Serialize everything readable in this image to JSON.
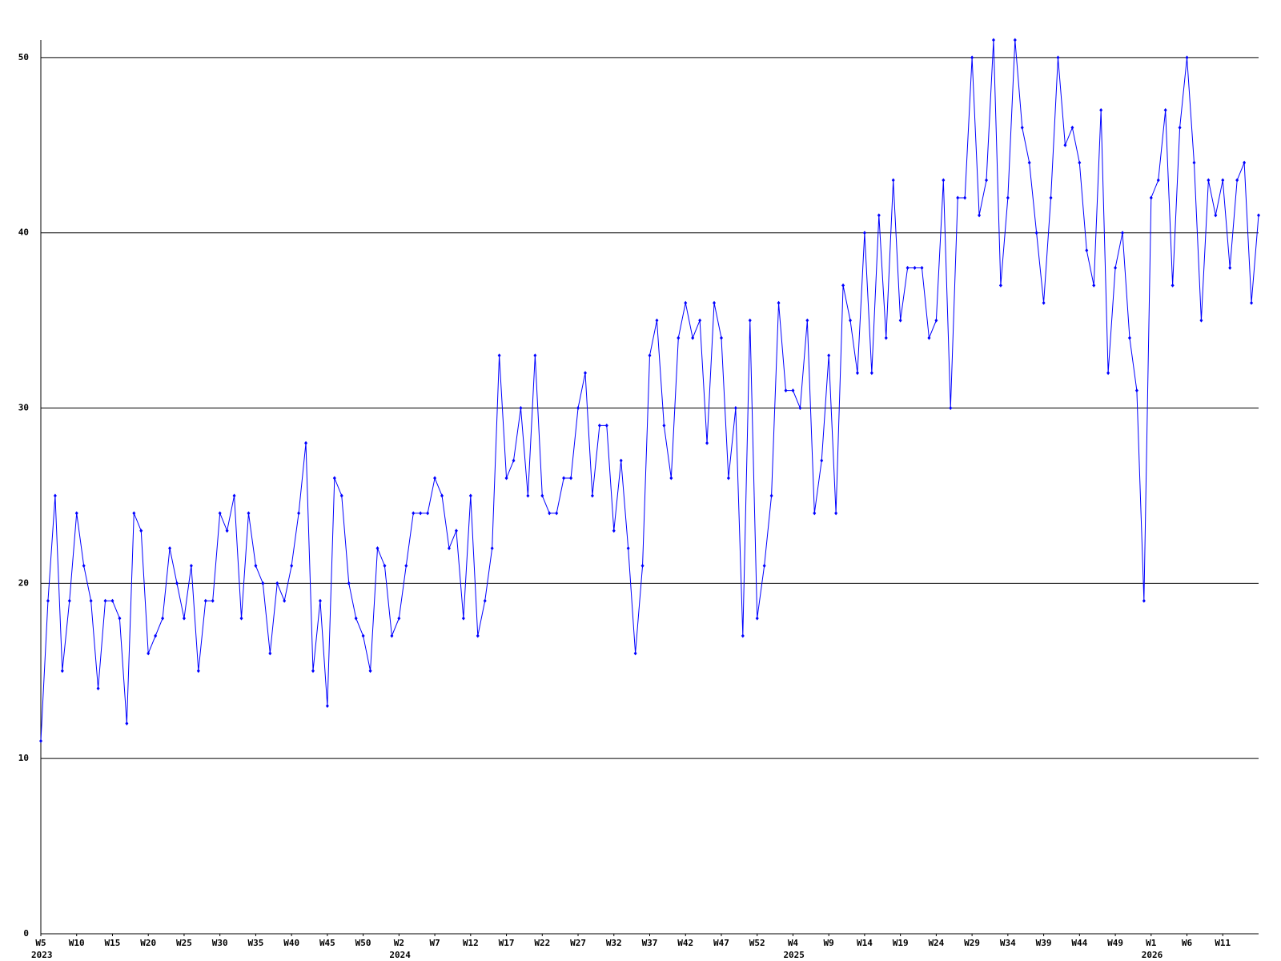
{
  "chart_data": {
    "type": "line",
    "x": [
      0,
      1,
      2,
      3,
      4,
      5,
      6,
      7,
      8,
      9,
      10,
      11,
      12,
      13,
      14,
      15,
      16,
      17,
      18,
      19,
      20,
      21,
      22,
      23,
      24,
      25,
      26,
      27,
      28,
      29,
      30,
      31,
      32,
      33,
      34,
      35,
      36,
      37,
      38,
      39,
      40,
      41,
      42,
      43,
      44,
      45,
      46,
      47,
      48,
      49,
      50,
      51,
      52,
      53,
      54,
      55,
      56,
      57,
      58,
      59,
      60,
      61,
      62,
      63,
      64,
      65,
      66,
      67,
      68,
      69,
      70,
      71,
      72,
      73,
      74,
      75,
      76,
      77,
      78,
      79,
      80,
      81,
      82,
      83,
      84,
      85,
      86,
      87,
      88,
      89,
      90,
      91,
      92,
      93,
      94,
      95,
      96,
      97,
      98,
      99,
      100,
      101,
      102,
      103,
      104,
      105,
      106,
      107,
      108,
      109,
      110,
      111,
      112,
      113,
      114,
      115,
      116,
      117,
      118,
      119,
      120,
      121,
      122,
      123,
      124,
      125,
      126,
      127,
      128,
      129,
      130,
      131,
      132,
      133,
      134,
      135,
      136,
      137,
      138,
      139,
      140,
      141,
      142,
      143,
      144,
      145,
      146,
      147,
      148,
      149,
      150,
      151,
      152,
      153,
      154,
      155,
      156,
      157,
      158,
      159,
      160,
      161,
      162,
      163,
      164,
      165,
      166,
      167,
      168,
      169,
      170
    ],
    "series": [
      {
        "color": "#0000ff",
        "values": [
          11,
          19,
          25,
          15,
          19,
          24,
          21,
          19,
          14,
          19,
          19,
          18,
          12,
          24,
          23,
          16,
          17,
          18,
          22,
          20,
          18,
          21,
          15,
          19,
          19,
          24,
          23,
          25,
          18,
          24,
          21,
          20,
          16,
          20,
          19,
          21,
          24,
          28,
          15,
          19,
          13,
          26,
          25,
          20,
          18,
          17,
          15,
          22,
          21,
          17,
          18,
          21,
          24,
          24,
          24,
          26,
          25,
          22,
          23,
          18,
          25,
          17,
          19,
          22,
          33,
          26,
          27,
          30,
          25,
          33,
          25,
          24,
          24,
          26,
          26,
          30,
          32,
          25,
          29,
          29,
          23,
          27,
          22,
          16,
          21,
          33,
          35,
          29,
          26,
          34,
          36,
          34,
          35,
          28,
          36,
          34,
          26,
          30,
          17,
          35,
          18,
          21,
          25,
          36,
          31,
          31,
          30,
          35,
          24,
          27,
          33,
          24,
          37,
          35,
          32,
          40,
          32,
          41,
          34,
          43,
          35,
          38,
          38,
          38,
          34,
          35,
          43,
          30,
          42,
          42,
          50,
          41,
          43,
          51,
          37,
          42,
          51,
          46,
          44,
          40,
          36,
          42,
          50,
          45,
          46,
          44,
          39,
          37,
          47,
          32,
          38,
          40,
          34,
          31,
          19,
          42,
          43,
          47,
          37,
          46,
          50,
          44,
          35,
          43,
          41,
          43,
          38,
          43,
          44,
          36,
          41
        ]
      }
    ],
    "xlim": [
      0,
      170
    ],
    "xticks": [
      {
        "value": 0,
        "label": "W5"
      },
      {
        "value": 5,
        "label": "W10"
      },
      {
        "value": 10,
        "label": "W15"
      },
      {
        "value": 15,
        "label": "W20"
      },
      {
        "value": 20,
        "label": "W25"
      },
      {
        "value": 25,
        "label": "W30"
      },
      {
        "value": 30,
        "label": "W35"
      },
      {
        "value": 35,
        "label": "W40"
      },
      {
        "value": 40,
        "label": "W45"
      },
      {
        "value": 45,
        "label": "W50"
      },
      {
        "value": 50,
        "label": "W2"
      },
      {
        "value": 55,
        "label": "W7"
      },
      {
        "value": 60,
        "label": "W12"
      },
      {
        "value": 65,
        "label": "W17"
      },
      {
        "value": 70,
        "label": "W22"
      },
      {
        "value": 75,
        "label": "W27"
      },
      {
        "value": 80,
        "label": "W32"
      },
      {
        "value": 85,
        "label": "W37"
      },
      {
        "value": 90,
        "label": "W42"
      },
      {
        "value": 95,
        "label": "W47"
      },
      {
        "value": 100,
        "label": "W52"
      },
      {
        "value": 105,
        "label": "W4"
      },
      {
        "value": 110,
        "label": "W9"
      },
      {
        "value": 115,
        "label": "W14"
      },
      {
        "value": 120,
        "label": "W19"
      },
      {
        "value": 125,
        "label": "W24"
      },
      {
        "value": 130,
        "label": "W29"
      },
      {
        "value": 135,
        "label": "W34"
      },
      {
        "value": 140,
        "label": "W39"
      },
      {
        "value": 145,
        "label": "W44"
      },
      {
        "value": 150,
        "label": "W49"
      },
      {
        "value": 155,
        "label": "W1"
      },
      {
        "value": 160,
        "label": "W6"
      },
      {
        "value": 165,
        "label": "W11"
      }
    ],
    "year_labels": [
      {
        "value": 0,
        "label": "2023"
      },
      {
        "value": 50,
        "label": "2024"
      },
      {
        "value": 105,
        "label": "2025"
      },
      {
        "value": 155,
        "label": "2026"
      }
    ],
    "ylim": [
      0,
      51
    ],
    "yticks": [
      0,
      10,
      20,
      30,
      40,
      50
    ],
    "grid": true
  }
}
